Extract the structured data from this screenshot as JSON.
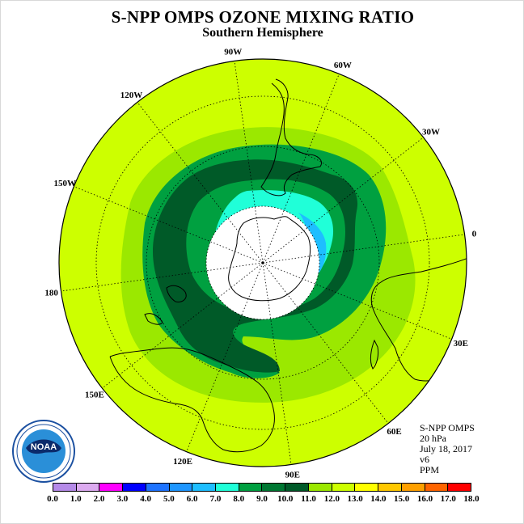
{
  "title": "S-NPP OMPS OZONE MIXING RATIO",
  "subtitle": "Southern Hemisphere",
  "longitude_labels": [
    "90W",
    "60W",
    "30W",
    "0",
    "30E",
    "60E",
    "90E",
    "120E",
    "150E",
    "180",
    "150W",
    "120W"
  ],
  "info": {
    "instrument": "S-NPP OMPS",
    "level": "20 hPa",
    "date": "July 18, 2017",
    "version": "v6",
    "units": "PPM"
  },
  "colorbar": {
    "ticks": [
      "0.0",
      "1.0",
      "2.0",
      "3.0",
      "4.0",
      "5.0",
      "6.0",
      "7.0",
      "8.0",
      "9.0",
      "10.0",
      "11.0",
      "12.0",
      "13.0",
      "14.0",
      "15.0",
      "16.0",
      "17.0",
      "18.0"
    ],
    "colors": [
      "#b58ae8",
      "#dcaaf0",
      "#ff00ff",
      "#0000ff",
      "#1e73ff",
      "#1e96ff",
      "#1ebeff",
      "#20ffd8",
      "#00a040",
      "#007832",
      "#005a28",
      "#9be800",
      "#cdff00",
      "#ffff00",
      "#ffc800",
      "#ffa000",
      "#ff6400",
      "#ff0000",
      "#8b5a32"
    ]
  },
  "logo": {
    "text": "NOAA",
    "ring_text": "NATIONAL OCEANIC AND ATMOSPHERIC ADMINISTRATION · U.S. DEPARTMENT OF COMMERCE"
  }
}
